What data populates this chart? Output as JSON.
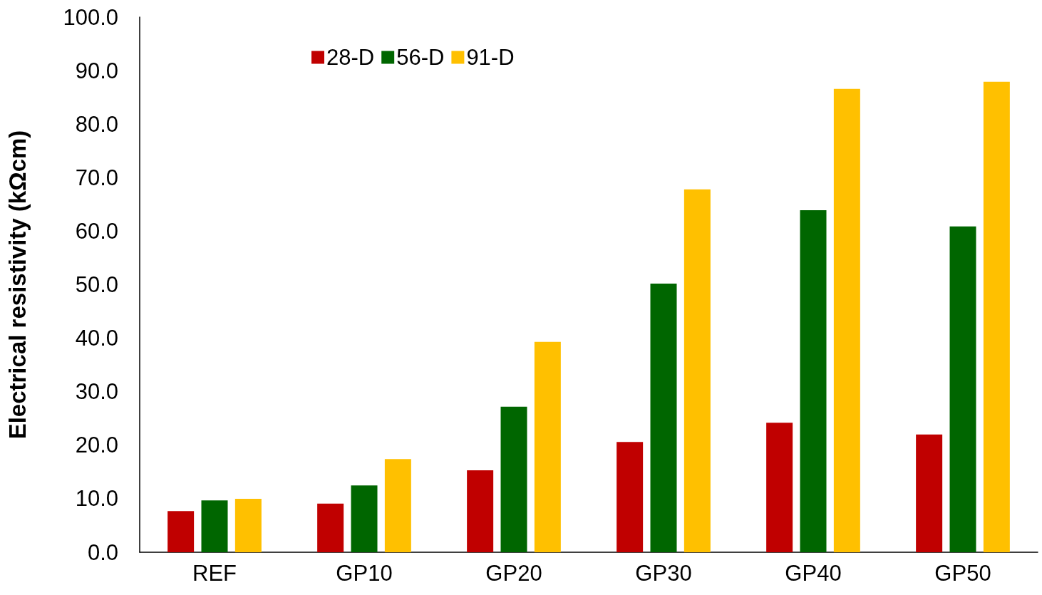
{
  "chart_data": {
    "type": "bar",
    "ylabel": "Electrical resistivity (kΩcm)",
    "categories": [
      "REF",
      "GP10",
      "GP20",
      "GP30",
      "GP40",
      "GP50"
    ],
    "series": [
      {
        "name": "28-D",
        "color": "#c00000",
        "values": [
          7.7,
          9.1,
          15.3,
          20.6,
          24.2,
          22.0
        ]
      },
      {
        "name": "56-D",
        "color": "#006600",
        "values": [
          9.7,
          12.5,
          27.2,
          50.2,
          63.9,
          60.9
        ]
      },
      {
        "name": "91-D",
        "color": "#ffc000",
        "values": [
          10.0,
          17.4,
          39.3,
          67.8,
          86.6,
          87.9
        ]
      }
    ],
    "ylim": [
      0,
      100
    ],
    "yticks": [
      {
        "value": 0,
        "label": "0.0"
      },
      {
        "value": 10,
        "label": "10.0"
      },
      {
        "value": 20,
        "label": "20.0"
      },
      {
        "value": 30,
        "label": "30.0"
      },
      {
        "value": 40,
        "label": "40.0"
      },
      {
        "value": 50,
        "label": "50.0"
      },
      {
        "value": 60,
        "label": "60.0"
      },
      {
        "value": 70,
        "label": "70.0"
      },
      {
        "value": 80,
        "label": "80.0"
      },
      {
        "value": 90,
        "label": "90.0"
      },
      {
        "value": 100,
        "label": "100.0"
      }
    ],
    "grid": false,
    "legend": "top left"
  }
}
